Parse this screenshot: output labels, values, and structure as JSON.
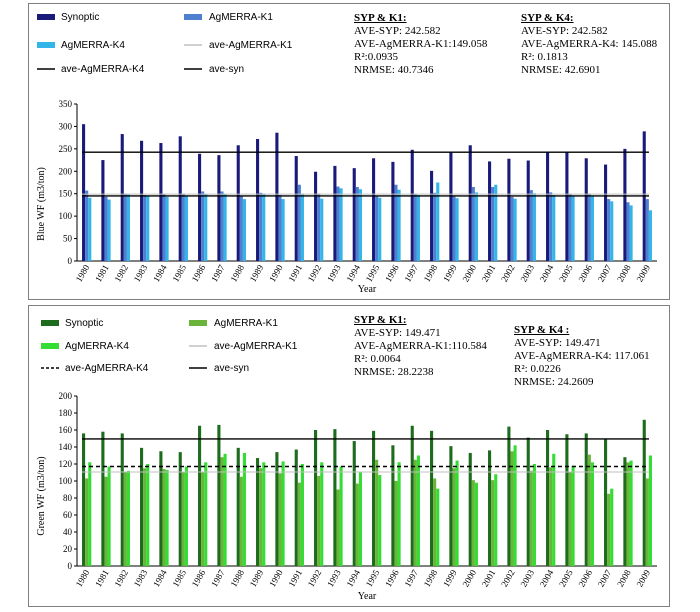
{
  "charts": [
    {
      "id": "blue",
      "ylabel": "Blue WF (m3/ton)",
      "xlabel": "Year",
      "ylim": [
        0,
        350
      ],
      "yticks": [
        0,
        50,
        100,
        150,
        200,
        250,
        300,
        350
      ],
      "legend": [
        "Synoptic",
        "AgMERRA-K1",
        "AgMERRA-K4",
        "ave-AgMERRA-K1",
        "ave-AgMERRA-K4",
        "ave-syn"
      ],
      "stats": [
        {
          "title": "SYP & K1:",
          "lines": [
            "AVE-SYP: 242.582",
            "AVE-AgMERRA-K1:149.058",
            "R²:0.0935",
            "NRMSE: 40.7346"
          ]
        },
        {
          "title": "SYP & K4:",
          "lines": [
            "AVE-SYP: 242.582",
            "AVE-AgMERRA-K4: 145.088",
            "R²: 0.1813",
            "NRMSE: 42.6901"
          ]
        }
      ]
    },
    {
      "id": "green",
      "ylabel": "Green WF (m3/ton)",
      "xlabel": "Year",
      "ylim": [
        0,
        200
      ],
      "yticks": [
        0,
        20,
        40,
        60,
        80,
        100,
        120,
        140,
        160,
        180,
        200
      ],
      "legend": [
        "Synoptic",
        "AgMERRA-K1",
        "AgMERRA-K4",
        "ave-AgMERRA-K1",
        "ave-AgMERRA-K4",
        "ave-syn"
      ],
      "stats": [
        {
          "title": "SYP & K1:",
          "lines": [
            "AVE-SYP: 149.471",
            "AVE-AgMERRA-K1:110.584",
            "R²: 0.0064",
            "NRMSE: 28.2238"
          ]
        },
        {
          "title": "SYP & K4 :",
          "lines": [
            "AVE-SYP: 149.471",
            "AVE-AgMERRA-K4: 117.061",
            "R²: 0.0226",
            "NRMSE: 24.2609"
          ]
        }
      ]
    }
  ],
  "chart_data": [
    {
      "type": "bar",
      "title": "",
      "xlabel": "Year",
      "ylabel": "Blue WF (m3/ton)",
      "ylim": [
        0,
        350
      ],
      "categories": [
        "1980",
        "1981",
        "1982",
        "1983",
        "1984",
        "1985",
        "1986",
        "1987",
        "1988",
        "1989",
        "1990",
        "1991",
        "1992",
        "1993",
        "1994",
        "1995",
        "1996",
        "1997",
        "1998",
        "1999",
        "2000",
        "2001",
        "2002",
        "2003",
        "2004",
        "2005",
        "2006",
        "2007",
        "2008",
        "2009"
      ],
      "series": [
        {
          "name": "Synoptic",
          "color": "#1a1a7a",
          "values": [
            305,
            225,
            283,
            268,
            263,
            278,
            239,
            236,
            258,
            272,
            286,
            234,
            199,
            212,
            207,
            229,
            221,
            248,
            201,
            242,
            258,
            222,
            228,
            224,
            244,
            242,
            229,
            215,
            250,
            289
          ]
        },
        {
          "name": "AgMERRA-K1",
          "color": "#4f7fcf",
          "values": [
            157,
            143,
            150,
            147,
            149,
            150,
            155,
            155,
            144,
            152,
            147,
            170,
            150,
            166,
            165,
            146,
            170,
            150,
            152,
            145,
            165,
            165,
            143,
            158,
            153,
            149,
            150,
            138,
            131,
            138
          ]
        },
        {
          "name": "AgMERRA-K4",
          "color": "#33b5ea",
          "values": [
            141,
            137,
            148,
            144,
            143,
            146,
            149,
            149,
            138,
            150,
            138,
            150,
            139,
            162,
            160,
            141,
            159,
            147,
            175,
            140,
            153,
            170,
            139,
            151,
            147,
            145,
            145,
            133,
            124,
            113
          ]
        }
      ],
      "reference_lines": [
        {
          "name": "ave-AgMERRA-K1",
          "value": 149.058,
          "color": "#c0c0c0"
        },
        {
          "name": "ave-AgMERRA-K4",
          "value": 145.088,
          "color": "#000000"
        },
        {
          "name": "ave-syn",
          "value": 242.582,
          "color": "#000000"
        }
      ]
    },
    {
      "type": "bar",
      "title": "",
      "xlabel": "Year",
      "ylabel": "Green WF (m3/ton)",
      "ylim": [
        0,
        200
      ],
      "categories": [
        "1980",
        "1981",
        "1982",
        "1983",
        "1984",
        "1985",
        "1986",
        "1987",
        "1988",
        "1989",
        "1990",
        "1991",
        "1992",
        "1993",
        "1994",
        "1995",
        "1996",
        "1997",
        "1998",
        "1999",
        "2000",
        "2001",
        "2002",
        "2003",
        "2004",
        "2005",
        "2006",
        "2007",
        "2008",
        "2009"
      ],
      "series": [
        {
          "name": "Synoptic",
          "color": "#1d6b1d",
          "values": [
            156,
            158,
            156,
            139,
            135,
            134,
            165,
            166,
            139,
            127,
            134,
            137,
            160,
            161,
            147,
            159,
            142,
            165,
            159,
            141,
            133,
            136,
            164,
            151,
            160,
            155,
            156,
            150,
            128,
            172
          ]
        },
        {
          "name": "AgMERRA-K1",
          "color": "#6ab43a",
          "values": [
            103,
            105,
            111,
            115,
            114,
            111,
            110,
            128,
            105,
            115,
            109,
            98,
            106,
            90,
            97,
            125,
            100,
            125,
            103,
            115,
            101,
            101,
            135,
            112,
            116,
            110,
            131,
            85,
            122,
            103
          ]
        },
        {
          "name": "AgMERRA-K4",
          "color": "#33dd33",
          "values": [
            122,
            117,
            112,
            120,
            113,
            117,
            122,
            132,
            133,
            122,
            123,
            120,
            122,
            117,
            110,
            107,
            122,
            130,
            91,
            124,
            98,
            108,
            142,
            120,
            132,
            118,
            122,
            91,
            124,
            130
          ]
        }
      ],
      "reference_lines": [
        {
          "name": "ave-AgMERRA-K1",
          "value": 110.584,
          "color": "#c0c0c0"
        },
        {
          "name": "ave-AgMERRA-K4",
          "value": 117.061,
          "color": "#000000",
          "dash": true
        },
        {
          "name": "ave-syn",
          "value": 149.471,
          "color": "#000000"
        }
      ]
    }
  ]
}
